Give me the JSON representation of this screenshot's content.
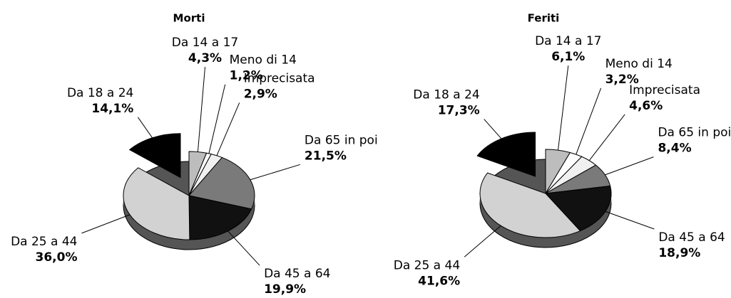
{
  "chart_data": [
    {
      "type": "pie",
      "title": "Morti",
      "categories": [
        "Da 18 a 24",
        "Da 14 a 17",
        "Meno di 14",
        "Imprecisata",
        "Da 65 in poi",
        "Da 45 a 64",
        "Da 25 a 44"
      ],
      "values": [
        14.1,
        4.3,
        1.2,
        2.9,
        21.5,
        19.9,
        36.0
      ],
      "value_labels": [
        "14,1%",
        "4,3%",
        "1,2%",
        "2,9%",
        "21,5%",
        "19,9%",
        "36,0%"
      ],
      "colors": [
        "#000000",
        "#bdbdbd",
        "#ffffff",
        "#f0f0f0",
        "#7a7a7a",
        "#111111",
        "#d2d2d2"
      ]
    },
    {
      "type": "pie",
      "title": "Feriti",
      "categories": [
        "Da 18 a 24",
        "Da 14 a 17",
        "Meno di 14",
        "Imprecisata",
        "Da 65 in poi",
        "Da 45 a 64",
        "Da 25 a 44"
      ],
      "values": [
        17.3,
        6.1,
        3.2,
        4.6,
        8.4,
        18.9,
        41.6
      ],
      "value_labels": [
        "17,3%",
        "6,1%",
        "3,2%",
        "4,6%",
        "8,4%",
        "18,9%",
        "41,6%"
      ],
      "colors": [
        "#000000",
        "#bdbdbd",
        "#ffffff",
        "#f0f0f0",
        "#7a7a7a",
        "#111111",
        "#d2d2d2"
      ]
    }
  ]
}
